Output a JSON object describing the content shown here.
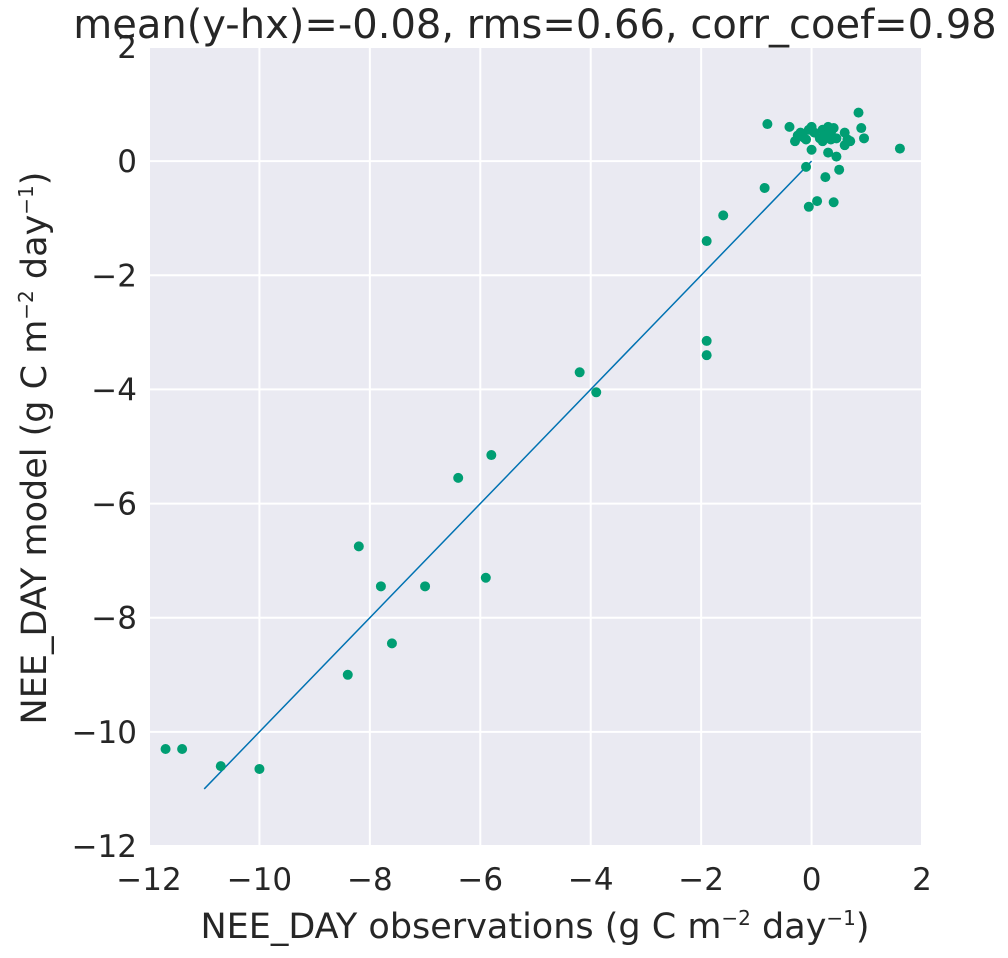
{
  "chart_data": {
    "type": "scatter",
    "title": "mean(y-hx)=-0.08, rms=0.66, corr_coef=0.98",
    "xlabel": {
      "prefix": "NEE_DAY observations (g C m",
      "sup1": "−2",
      "middle": " day",
      "sup2": "−1",
      "suffix": ")"
    },
    "ylabel": {
      "prefix": "NEE_DAY model (g C m",
      "sup1": "−2",
      "middle": " day",
      "sup2": "−1",
      "suffix": ")"
    },
    "xlim": [
      -12,
      2
    ],
    "ylim": [
      -12,
      2
    ],
    "xticks": [
      -12,
      -10,
      -8,
      -6,
      -4,
      -2,
      0,
      2
    ],
    "yticks": [
      -12,
      -10,
      -8,
      -6,
      -4,
      -2,
      0,
      2
    ],
    "xtick_labels": [
      "−12",
      "−10",
      "−8",
      "−6",
      "−4",
      "−2",
      "0",
      "2"
    ],
    "ytick_labels": [
      "−12",
      "−10",
      "−8",
      "−6",
      "−4",
      "−2",
      "0",
      "2"
    ],
    "grid": true,
    "colors": {
      "background": "#eaeaf2",
      "grid": "#ffffff",
      "points": "#009e73",
      "line": "#0072b2"
    },
    "reference_line": {
      "x": [
        -11,
        0
      ],
      "y": [
        -11,
        0
      ]
    },
    "points": [
      {
        "x": -11.7,
        "y": -10.3
      },
      {
        "x": -11.4,
        "y": -10.3
      },
      {
        "x": -10.7,
        "y": -10.6
      },
      {
        "x": -10.0,
        "y": -10.65
      },
      {
        "x": -8.4,
        "y": -9.0
      },
      {
        "x": -8.2,
        "y": -6.75
      },
      {
        "x": -7.8,
        "y": -7.45
      },
      {
        "x": -7.6,
        "y": -8.45
      },
      {
        "x": -7.0,
        "y": -7.45
      },
      {
        "x": -6.4,
        "y": -5.55
      },
      {
        "x": -5.9,
        "y": -7.3
      },
      {
        "x": -5.8,
        "y": -5.15
      },
      {
        "x": -4.2,
        "y": -3.7
      },
      {
        "x": -3.9,
        "y": -4.05
      },
      {
        "x": -1.9,
        "y": -1.4
      },
      {
        "x": -1.9,
        "y": -3.15
      },
      {
        "x": -1.9,
        "y": -3.4
      },
      {
        "x": -1.6,
        "y": -0.95
      },
      {
        "x": -0.85,
        "y": -0.47
      },
      {
        "x": -0.8,
        "y": 0.65
      },
      {
        "x": -0.4,
        "y": 0.6
      },
      {
        "x": -0.3,
        "y": 0.35
      },
      {
        "x": -0.25,
        "y": 0.45
      },
      {
        "x": -0.2,
        "y": 0.5
      },
      {
        "x": -0.15,
        "y": 0.42
      },
      {
        "x": -0.1,
        "y": -0.1
      },
      {
        "x": -0.1,
        "y": 0.38
      },
      {
        "x": -0.05,
        "y": 0.55
      },
      {
        "x": -0.05,
        "y": -0.8
      },
      {
        "x": 0.0,
        "y": 0.6
      },
      {
        "x": 0.0,
        "y": 0.2
      },
      {
        "x": 0.05,
        "y": 0.5
      },
      {
        "x": 0.1,
        "y": -0.7
      },
      {
        "x": 0.15,
        "y": 0.4
      },
      {
        "x": 0.2,
        "y": 0.55
      },
      {
        "x": 0.2,
        "y": 0.35
      },
      {
        "x": 0.25,
        "y": 0.45
      },
      {
        "x": 0.25,
        "y": -0.28
      },
      {
        "x": 0.3,
        "y": 0.6
      },
      {
        "x": 0.3,
        "y": 0.15
      },
      {
        "x": 0.35,
        "y": 0.5
      },
      {
        "x": 0.35,
        "y": 0.38
      },
      {
        "x": 0.4,
        "y": 0.58
      },
      {
        "x": 0.4,
        "y": -0.72
      },
      {
        "x": 0.45,
        "y": 0.4
      },
      {
        "x": 0.45,
        "y": 0.08
      },
      {
        "x": 0.5,
        "y": -0.15
      },
      {
        "x": 0.6,
        "y": 0.5
      },
      {
        "x": 0.6,
        "y": 0.28
      },
      {
        "x": 0.65,
        "y": 0.38
      },
      {
        "x": 0.7,
        "y": 0.35
      },
      {
        "x": 0.85,
        "y": 0.85
      },
      {
        "x": 0.9,
        "y": 0.58
      },
      {
        "x": 0.95,
        "y": 0.4
      },
      {
        "x": 1.6,
        "y": 0.22
      }
    ]
  }
}
